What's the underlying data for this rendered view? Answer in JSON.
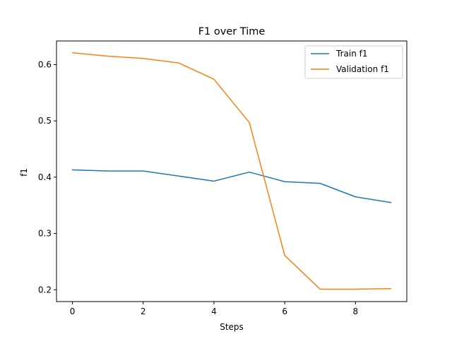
{
  "chart_data": {
    "type": "line",
    "title": "F1 over Time",
    "xlabel": "Steps",
    "ylabel": "f1",
    "x": [
      0,
      1,
      2,
      3,
      4,
      5,
      6,
      7,
      8,
      9
    ],
    "xlim": [
      -0.45,
      9.45
    ],
    "ylim": [
      0.179,
      0.642
    ],
    "xticks": [
      0,
      2,
      4,
      6,
      8
    ],
    "yticks": [
      0.2,
      0.3,
      0.4,
      0.5,
      0.6
    ],
    "grid": false,
    "legend_position": "top-right",
    "series": [
      {
        "name": "Train f1",
        "color": "#1f77b4",
        "values": [
          0.413,
          0.411,
          0.411,
          0.402,
          0.393,
          0.409,
          0.392,
          0.389,
          0.365,
          0.355
        ]
      },
      {
        "name": "Validation f1",
        "color": "#ff7f0e",
        "values": [
          0.621,
          0.615,
          0.611,
          0.603,
          0.574,
          0.497,
          0.261,
          0.201,
          0.201,
          0.202
        ]
      }
    ]
  }
}
